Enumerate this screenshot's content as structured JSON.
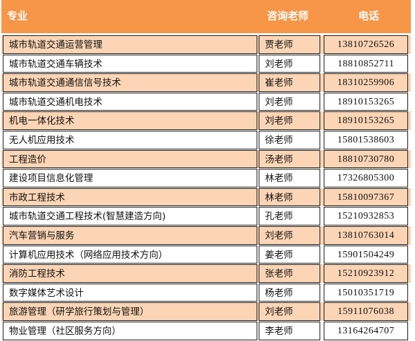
{
  "header": {
    "major": "专业",
    "teacher": "咨询老师",
    "phone": "电话"
  },
  "rows": [
    {
      "major": "城市轨道交通运营管理",
      "teacher": "贾老师",
      "phone": "13810726526"
    },
    {
      "major": "城市轨道交通车辆技术",
      "teacher": "刘老师",
      "phone": "18810852711"
    },
    {
      "major": "城市轨道交通通信信号技术",
      "teacher": "崔老师",
      "phone": "18310259906"
    },
    {
      "major": "城市轨道交通机电技术",
      "teacher": "刘老师",
      "phone": "18910153265"
    },
    {
      "major": "机电一体化技术",
      "teacher": "刘老师",
      "phone": "18910153265"
    },
    {
      "major": "无人机应用技术",
      "teacher": "徐老师",
      "phone": "15801538603"
    },
    {
      "major": "工程造价",
      "teacher": "汤老师",
      "phone": "18810730780"
    },
    {
      "major": "建设项目信息化管理",
      "teacher": "林老师",
      "phone": "17326805300"
    },
    {
      "major": "市政工程技术",
      "teacher": "林老师",
      "phone": "15810097367"
    },
    {
      "major": "城市轨道交通工程技术(智慧建造方向)",
      "teacher": "孔老师",
      "phone": "15210932853"
    },
    {
      "major": "汽车营销与服务",
      "teacher": "刘老师",
      "phone": "13810763014"
    },
    {
      "major": "计算机应用技术（网络应用技术方向）",
      "teacher": "姜老师",
      "phone": "15901504249"
    },
    {
      "major": "消防工程技术",
      "teacher": "张老师",
      "phone": "15210923912"
    },
    {
      "major": "数字媒体艺术设计",
      "teacher": "杨老师",
      "phone": "15010351719"
    },
    {
      "major": "旅游管理（研学旅行策划与管理）",
      "teacher": "刘老师",
      "phone": "15911076038"
    },
    {
      "major": "物业管理（社区服务方向）",
      "teacher": "李老师",
      "phone": "13164264707"
    }
  ],
  "colors": {
    "header_bg": "#f79646",
    "row_alt_bg": "#fbd5b5",
    "row_bg": "#ffffff",
    "border": "#1a1a1a"
  }
}
